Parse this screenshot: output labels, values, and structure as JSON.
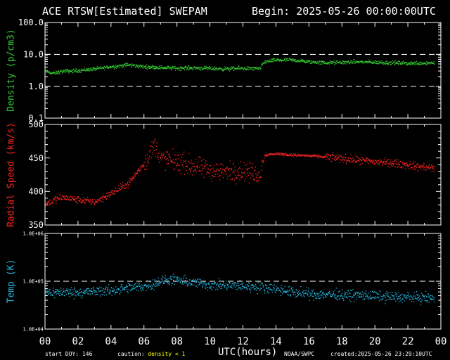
{
  "header": {
    "title": "ACE RTSW[Estimated] SWEPAM",
    "begin": "Begin: 2025-05-26 00:00:00UTC"
  },
  "footer": {
    "start_doy": "start DOY: 146",
    "caution_prefix": "caution:",
    "caution_warning": "density < 1",
    "source": "NOAA/SWPC",
    "created": "created:2025-05-26 23:29:10UTC"
  },
  "colors": {
    "background": "#000000",
    "axes": "#ffffff",
    "density": "#33cc33",
    "speed": "#ff2222",
    "temp": "#22b8e0",
    "caution": "#ffff00"
  },
  "chart_data": [
    {
      "type": "scatter",
      "ylabel": "Density (p/cm3)",
      "yscale": "log",
      "ylim": [
        0.1,
        100
      ],
      "yticks": [
        "0.1",
        "1.0",
        "10.0",
        "100.0"
      ],
      "reference_lines": [
        1,
        10
      ],
      "xlim": [
        0,
        24
      ],
      "trend": [
        {
          "x": 0,
          "y": 3.0
        },
        {
          "x": 0.5,
          "y": 2.6
        },
        {
          "x": 1,
          "y": 3.0
        },
        {
          "x": 2,
          "y": 3.2
        },
        {
          "x": 3,
          "y": 3.6
        },
        {
          "x": 4,
          "y": 4.2
        },
        {
          "x": 5,
          "y": 4.8
        },
        {
          "x": 6,
          "y": 4.2
        },
        {
          "x": 7,
          "y": 4.0
        },
        {
          "x": 8,
          "y": 3.8
        },
        {
          "x": 9,
          "y": 3.9
        },
        {
          "x": 10,
          "y": 3.7
        },
        {
          "x": 11,
          "y": 3.6
        },
        {
          "x": 12,
          "y": 3.8
        },
        {
          "x": 13,
          "y": 3.6
        },
        {
          "x": 13.3,
          "y": 6.0
        },
        {
          "x": 14,
          "y": 6.8
        },
        {
          "x": 15,
          "y": 6.8
        },
        {
          "x": 16,
          "y": 6.0
        },
        {
          "x": 17,
          "y": 5.6
        },
        {
          "x": 18,
          "y": 5.8
        },
        {
          "x": 19,
          "y": 6.0
        },
        {
          "x": 20,
          "y": 5.8
        },
        {
          "x": 21,
          "y": 5.6
        },
        {
          "x": 22,
          "y": 5.4
        },
        {
          "x": 23.5,
          "y": 5.6
        }
      ]
    },
    {
      "type": "scatter",
      "ylabel": "Radial Speed (km/s)",
      "yscale": "linear",
      "ylim": [
        350,
        500
      ],
      "yticks": [
        "350",
        "400",
        "450",
        "500"
      ],
      "xlim": [
        0,
        24
      ],
      "trend": [
        {
          "x": 0,
          "y": 382
        },
        {
          "x": 1,
          "y": 392
        },
        {
          "x": 2,
          "y": 388
        },
        {
          "x": 3,
          "y": 385
        },
        {
          "x": 4,
          "y": 398
        },
        {
          "x": 5,
          "y": 412
        },
        {
          "x": 6,
          "y": 442
        },
        {
          "x": 6.6,
          "y": 470
        },
        {
          "x": 7,
          "y": 450
        },
        {
          "x": 8,
          "y": 445
        },
        {
          "x": 9,
          "y": 438
        },
        {
          "x": 10,
          "y": 432
        },
        {
          "x": 11,
          "y": 430
        },
        {
          "x": 12,
          "y": 432
        },
        {
          "x": 13,
          "y": 425
        },
        {
          "x": 13.3,
          "y": 455
        },
        {
          "x": 14,
          "y": 457
        },
        {
          "x": 15,
          "y": 455
        },
        {
          "x": 16,
          "y": 454
        },
        {
          "x": 17,
          "y": 452
        },
        {
          "x": 18,
          "y": 450
        },
        {
          "x": 19,
          "y": 447
        },
        {
          "x": 20,
          "y": 445
        },
        {
          "x": 21,
          "y": 443
        },
        {
          "x": 22,
          "y": 440
        },
        {
          "x": 23.5,
          "y": 435
        }
      ]
    },
    {
      "type": "scatter",
      "ylabel": "Temp (K)",
      "yscale": "log",
      "ylim": [
        10000,
        1000000
      ],
      "yticks": [
        "1.0E+04",
        "1.0E+05",
        "1.0E+06"
      ],
      "reference_lines": [
        100000
      ],
      "xlim": [
        0,
        24
      ],
      "xlabel": "UTC(hours)",
      "xticks": [
        "00",
        "02",
        "04",
        "06",
        "08",
        "10",
        "12",
        "14",
        "16",
        "18",
        "20",
        "22",
        "00"
      ],
      "trend": [
        {
          "x": 0,
          "y": 60000
        },
        {
          "x": 2,
          "y": 60000
        },
        {
          "x": 4,
          "y": 65000
        },
        {
          "x": 6,
          "y": 80000
        },
        {
          "x": 7.5,
          "y": 110000
        },
        {
          "x": 8.5,
          "y": 100000
        },
        {
          "x": 10,
          "y": 85000
        },
        {
          "x": 12,
          "y": 80000
        },
        {
          "x": 13.5,
          "y": 75000
        },
        {
          "x": 15,
          "y": 60000
        },
        {
          "x": 16,
          "y": 55000
        },
        {
          "x": 18,
          "y": 53000
        },
        {
          "x": 20,
          "y": 50000
        },
        {
          "x": 22,
          "y": 47000
        },
        {
          "x": 23.5,
          "y": 45000
        }
      ]
    }
  ]
}
